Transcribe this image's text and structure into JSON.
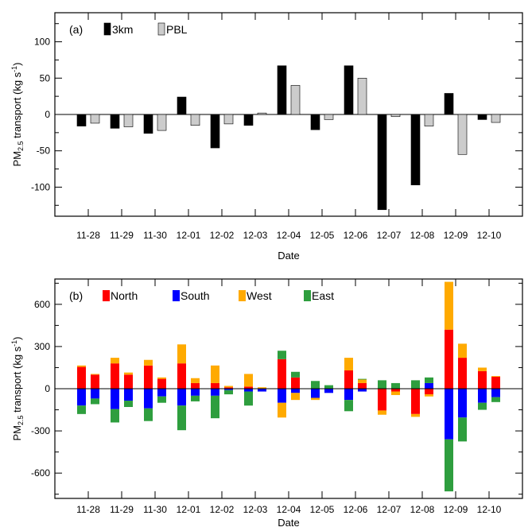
{
  "chart_data": [
    {
      "type": "bar",
      "panel_label": "(a)",
      "categories": [
        "11-28",
        "11-29",
        "11-30",
        "12-01",
        "12-02",
        "12-03",
        "12-04",
        "12-05",
        "12-06",
        "12-07",
        "12-08",
        "12-09",
        "12-10"
      ],
      "series": [
        {
          "name": "3km",
          "color": "#000000",
          "values": [
            -16,
            -19,
            -26,
            24,
            -46,
            -15,
            67,
            -21,
            67,
            -131,
            -97,
            29,
            -7
          ]
        },
        {
          "name": "PBL",
          "color": "#cccccc",
          "values": [
            -12,
            -17,
            -22,
            -15,
            -13,
            2,
            40,
            -7,
            50,
            -3,
            -16,
            -55,
            -11
          ]
        }
      ],
      "xlabel": "Date",
      "ylabel_main": "PM",
      "ylabel_sub": "2.5",
      "ylabel_rest": " transport (kg s",
      "ylabel_sup": "-1",
      "ylabel_end": ")",
      "ylim": [
        -140,
        140
      ],
      "yticks": [
        -100,
        -50,
        0,
        50,
        100
      ],
      "ytick_labels": [
        "-100",
        "-50",
        "0",
        "50",
        "100"
      ],
      "legend_position": "top-left"
    },
    {
      "type": "stacked_bar",
      "panel_label": "(b)",
      "categories": [
        "11-28",
        "11-29",
        "11-30",
        "12-01",
        "12-02",
        "12-03",
        "12-04",
        "12-05",
        "12-06",
        "12-07",
        "12-08",
        "12-09",
        "12-10"
      ],
      "groups": [
        {
          "name": "3km",
          "positive": [
            {
              "North": 155,
              "West": 10
            },
            {
              "North": 180,
              "West": 40
            },
            {
              "North": 165,
              "West": 40
            },
            {
              "North": 180,
              "West": 135
            },
            {
              "North": 40,
              "West": 125
            },
            {
              "North": 15,
              "West": 90
            },
            {
              "North": 210,
              "East": 60
            },
            {
              "East": 55
            },
            {
              "North": 130,
              "West": 90
            },
            {
              "East": 60
            },
            {
              "East": 60
            },
            {
              "North": 420,
              "West": 340
            },
            {
              "North": 125,
              "West": 25
            }
          ],
          "negative": [
            {
              "South": 120,
              "East": 60
            },
            {
              "South": 145,
              "East": 95
            },
            {
              "South": 140,
              "East": 90
            },
            {
              "South": 120,
              "East": 175
            },
            {
              "South": 50,
              "East": 160
            },
            {
              "South": 20,
              "East": 100
            },
            {
              "South": 100,
              "West": 105
            },
            {
              "South": 65,
              "West": 15
            },
            {
              "South": 80,
              "East": 80
            },
            {
              "North": 155,
              "West": 30
            },
            {
              "North": 180,
              "West": 20
            },
            {
              "South": 360,
              "East": 370
            },
            {
              "South": 100,
              "East": 50
            }
          ]
        },
        {
          "name": "PBL",
          "positive": [
            {
              "North": 100,
              "West": 5
            },
            {
              "North": 100,
              "West": 15
            },
            {
              "North": 70,
              "West": 10
            },
            {
              "North": 40,
              "West": 35
            },
            {
              "North": 10,
              "West": 10
            },
            {
              "West": 10
            },
            {
              "North": 80,
              "East": 40
            },
            {
              "East": 25
            },
            {
              "North": 40,
              "West": 25,
              "East": 5
            },
            {
              "East": 40
            },
            {
              "South": 40,
              "East": 40
            },
            {
              "North": 220,
              "West": 100
            },
            {
              "North": 85,
              "West": 5
            }
          ],
          "negative": [
            {
              "South": 70,
              "East": 40
            },
            {
              "South": 85,
              "East": 45
            },
            {
              "South": 55,
              "East": 45
            },
            {
              "South": 50,
              "East": 40
            },
            {
              "South": 10,
              "East": 30
            },
            {
              "South": 20
            },
            {
              "South": 30,
              "West": 50
            },
            {
              "South": 30
            },
            {
              "South": 20
            },
            {
              "North": 20,
              "West": 25
            },
            {
              "North": 40,
              "West": 15
            },
            {
              "South": 205,
              "East": 170
            },
            {
              "South": 60,
              "East": 35
            }
          ]
        }
      ],
      "series_legend": [
        {
          "name": "North",
          "color": "#ff0000"
        },
        {
          "name": "South",
          "color": "#0000ff"
        },
        {
          "name": "West",
          "color": "#ffaa00"
        },
        {
          "name": "East",
          "color": "#2e9e3e"
        }
      ],
      "xlabel": "Date",
      "ylabel_main": "PM",
      "ylabel_sub": "2.5",
      "ylabel_rest": " transport (kg s",
      "ylabel_sup": "-1",
      "ylabel_end": ")",
      "ylim": [
        -780,
        780
      ],
      "yticks": [
        -600,
        -300,
        0,
        300,
        600
      ],
      "ytick_labels": [
        "-600",
        "-300",
        "0",
        "300",
        "600"
      ],
      "legend_position": "top-left"
    }
  ]
}
